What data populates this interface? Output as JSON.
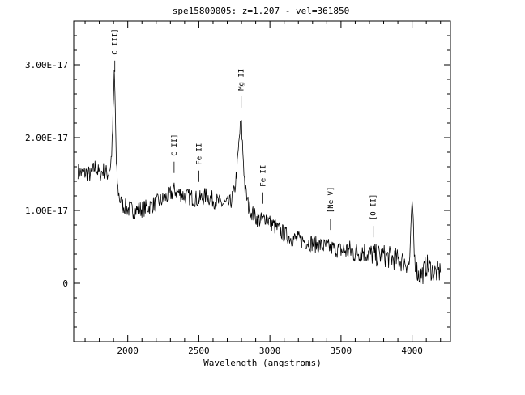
{
  "chart_data": {
    "type": "line",
    "title": "spe15800005: z=1.207 - vel=361850",
    "xlabel": "Wavelength (angstroms)",
    "ylabel": "",
    "xlim": [
      1620,
      4270
    ],
    "ylim": [
      -8e-18,
      3.6e-17
    ],
    "x_ticks": [
      2000,
      2500,
      3000,
      3500,
      4000
    ],
    "x_tick_labels": [
      "2000",
      "2500",
      "3000",
      "3500",
      "4000"
    ],
    "y_ticks": [
      0,
      1e-17,
      2e-17,
      3e-17
    ],
    "y_tick_labels": [
      "0",
      "1.00E-17",
      "2.00E-17",
      "3.00E-17"
    ],
    "grid": false,
    "legend": "none",
    "line_color": "#000000",
    "series": [
      {
        "x": [
          1650,
          1680,
          1710,
          1740,
          1770,
          1800,
          1830,
          1860,
          1880,
          1890,
          1900,
          1905,
          1910,
          1915,
          1920,
          1930,
          1945,
          1960,
          1980,
          2000,
          2050,
          2100,
          2150,
          2200,
          2250,
          2300,
          2330,
          2350,
          2400,
          2450,
          2500,
          2550,
          2600,
          2650,
          2700,
          2720,
          2750,
          2770,
          2785,
          2795,
          2800,
          2810,
          2825,
          2850,
          2900,
          2950,
          2970,
          3000,
          3050,
          3100,
          3150,
          3200,
          3250,
          3300,
          3350,
          3400,
          3450,
          3500,
          3550,
          3600,
          3650,
          3700,
          3750,
          3800,
          3850,
          3900,
          3950,
          3980,
          3995,
          4000,
          4005,
          4015,
          4030,
          4050,
          4080,
          4100,
          4130,
          4160,
          4200
        ],
        "y": [
          1.55e-17,
          1.5e-17,
          1.52e-17,
          1.48e-17,
          1.6e-17,
          1.5e-17,
          1.55e-17,
          1.5e-17,
          1.62e-17,
          1.9e-17,
          2.5e-17,
          2.9e-17,
          2.6e-17,
          2.1e-17,
          1.6e-17,
          1.3e-17,
          1.15e-17,
          1.08e-17,
          1.05e-17,
          1.02e-17,
          1e-17,
          1.02e-17,
          1.05e-17,
          1.1e-17,
          1.15e-17,
          1.22e-17,
          1.28e-17,
          1.25e-17,
          1.2e-17,
          1.18e-17,
          1.15e-17,
          1.2e-17,
          1.15e-17,
          1.1e-17,
          1.08e-17,
          1.1e-17,
          1.25e-17,
          1.6e-17,
          2e-17,
          2.2e-17,
          2.15e-17,
          1.8e-17,
          1.3e-17,
          1.05e-17,
          9e-18,
          8.5e-18,
          9.2e-18,
          8.5e-18,
          7.5e-18,
          6.8e-18,
          6.2e-18,
          6e-18,
          5.8e-18,
          5.5e-18,
          5.2e-18,
          5e-18,
          4.8e-18,
          4.5e-18,
          4.5e-18,
          4.2e-18,
          4.5e-18,
          4e-18,
          3.8e-18,
          3.8e-18,
          3.5e-18,
          3.2e-18,
          3e-18,
          2.5e-18,
          8e-18,
          1.15e-17,
          9e-18,
          4e-18,
          2e-18,
          1e-18,
          1.5e-18,
          2.5e-18,
          2e-18,
          1.5e-18,
          1.5e-18
        ]
      }
    ],
    "annotations": [
      {
        "label": "C III]",
        "x": 1909
      },
      {
        "label": "C II]",
        "x": 2326
      },
      {
        "label": "Fe II",
        "x": 2500
      },
      {
        "label": "Mg II",
        "x": 2798
      },
      {
        "label": "Fe II",
        "x": 2950
      },
      {
        "label": "[Ne V]",
        "x": 3426
      },
      {
        "label": "[O II]",
        "x": 3727
      }
    ]
  }
}
